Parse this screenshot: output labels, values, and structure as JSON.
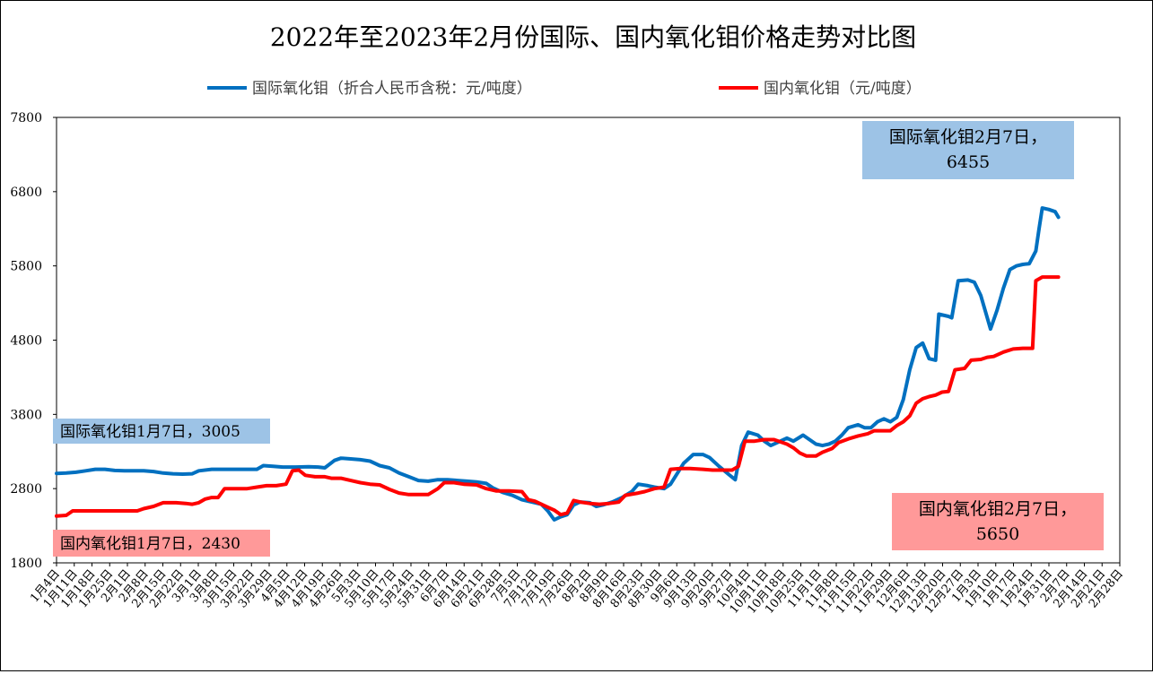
{
  "chart_data": {
    "type": "line",
    "title": "2022年至2023年2月份国际、国内氧化钼价格走势对比图",
    "legend_position": "top",
    "grid": false,
    "ylim": [
      1800,
      7800
    ],
    "yticks": [
      "1800",
      "2800",
      "3800",
      "4800",
      "5800",
      "6800",
      "7800"
    ],
    "series": [
      {
        "name": "国际氧化钼（折合人民币含税：元/吨度）",
        "color": "#0070C0",
        "points": [
          [
            0,
            3005
          ],
          [
            3,
            3010
          ],
          [
            6,
            3020
          ],
          [
            9,
            3040
          ],
          [
            12,
            3060
          ],
          [
            15,
            3060
          ],
          [
            18,
            3045
          ],
          [
            21,
            3040
          ],
          [
            24,
            3040
          ],
          [
            27,
            3040
          ],
          [
            30,
            3030
          ],
          [
            33,
            3010
          ],
          [
            36,
            3000
          ],
          [
            39,
            2995
          ],
          [
            42,
            3000
          ],
          [
            44,
            3040
          ],
          [
            48,
            3060
          ],
          [
            52,
            3060
          ],
          [
            57,
            3060
          ],
          [
            62,
            3060
          ],
          [
            64,
            3110
          ],
          [
            67,
            3100
          ],
          [
            70,
            3090
          ],
          [
            74,
            3090
          ],
          [
            78,
            3095
          ],
          [
            81,
            3090
          ],
          [
            83,
            3080
          ],
          [
            86,
            3180
          ],
          [
            88,
            3210
          ],
          [
            91,
            3200
          ],
          [
            94,
            3190
          ],
          [
            97,
            3170
          ],
          [
            100,
            3110
          ],
          [
            103,
            3080
          ],
          [
            106,
            3010
          ],
          [
            109,
            2960
          ],
          [
            112,
            2910
          ],
          [
            115,
            2900
          ],
          [
            118,
            2920
          ],
          [
            121,
            2920
          ],
          [
            124,
            2910
          ],
          [
            127,
            2900
          ],
          [
            130,
            2890
          ],
          [
            133,
            2870
          ],
          [
            135,
            2810
          ],
          [
            138,
            2750
          ],
          [
            141,
            2710
          ],
          [
            144,
            2650
          ],
          [
            147,
            2620
          ],
          [
            150,
            2590
          ],
          [
            152,
            2500
          ],
          [
            154,
            2380
          ],
          [
            156,
            2420
          ],
          [
            158,
            2450
          ],
          [
            160,
            2580
          ],
          [
            162,
            2620
          ],
          [
            165,
            2610
          ],
          [
            167,
            2560
          ],
          [
            169,
            2580
          ],
          [
            172,
            2620
          ],
          [
            175,
            2680
          ],
          [
            178,
            2760
          ],
          [
            180,
            2860
          ],
          [
            183,
            2840
          ],
          [
            185,
            2820
          ],
          [
            188,
            2800
          ],
          [
            190,
            2860
          ],
          [
            192,
            3000
          ],
          [
            194,
            3140
          ],
          [
            197,
            3260
          ],
          [
            200,
            3260
          ],
          [
            202,
            3220
          ],
          [
            205,
            3100
          ],
          [
            208,
            2990
          ],
          [
            210,
            2920
          ],
          [
            212,
            3380
          ],
          [
            214,
            3560
          ],
          [
            217,
            3520
          ],
          [
            219,
            3440
          ],
          [
            221,
            3380
          ],
          [
            223,
            3420
          ],
          [
            226,
            3480
          ],
          [
            228,
            3440
          ],
          [
            231,
            3520
          ],
          [
            233,
            3460
          ],
          [
            235,
            3400
          ],
          [
            237,
            3380
          ],
          [
            239,
            3400
          ],
          [
            241,
            3440
          ],
          [
            243,
            3520
          ],
          [
            245,
            3620
          ],
          [
            248,
            3660
          ],
          [
            250,
            3620
          ],
          [
            252,
            3620
          ],
          [
            254,
            3700
          ],
          [
            256,
            3740
          ],
          [
            258,
            3700
          ],
          [
            260,
            3760
          ],
          [
            262,
            4000
          ],
          [
            264,
            4400
          ],
          [
            266,
            4700
          ],
          [
            268,
            4760
          ],
          [
            270,
            4550
          ],
          [
            272,
            4530
          ],
          [
            273,
            5150
          ],
          [
            276,
            5120
          ],
          [
            277,
            5100
          ],
          [
            279,
            5600
          ],
          [
            282,
            5610
          ],
          [
            284,
            5580
          ],
          [
            286,
            5400
          ],
          [
            288,
            5100
          ],
          [
            289,
            4950
          ],
          [
            291,
            5200
          ],
          [
            293,
            5500
          ],
          [
            295,
            5750
          ],
          [
            297,
            5800
          ],
          [
            299,
            5820
          ],
          [
            301,
            5830
          ],
          [
            303,
            6000
          ],
          [
            304,
            6300
          ],
          [
            305,
            6580
          ],
          [
            307,
            6560
          ],
          [
            309,
            6530
          ],
          [
            310,
            6455
          ]
        ]
      },
      {
        "name": "国内氧化钼（元/吨度）",
        "color": "#FF0000",
        "points": [
          [
            0,
            2430
          ],
          [
            3,
            2440
          ],
          [
            5,
            2500
          ],
          [
            10,
            2500
          ],
          [
            15,
            2500
          ],
          [
            20,
            2500
          ],
          [
            25,
            2500
          ],
          [
            27,
            2530
          ],
          [
            30,
            2560
          ],
          [
            33,
            2610
          ],
          [
            37,
            2610
          ],
          [
            40,
            2600
          ],
          [
            42,
            2590
          ],
          [
            44,
            2610
          ],
          [
            46,
            2660
          ],
          [
            48,
            2680
          ],
          [
            50,
            2680
          ],
          [
            52,
            2800
          ],
          [
            56,
            2800
          ],
          [
            59,
            2800
          ],
          [
            62,
            2820
          ],
          [
            65,
            2840
          ],
          [
            68,
            2840
          ],
          [
            71,
            2860
          ],
          [
            73,
            3040
          ],
          [
            75,
            3050
          ],
          [
            77,
            2980
          ],
          [
            80,
            2960
          ],
          [
            83,
            2960
          ],
          [
            85,
            2940
          ],
          [
            88,
            2940
          ],
          [
            91,
            2910
          ],
          [
            94,
            2880
          ],
          [
            97,
            2860
          ],
          [
            100,
            2850
          ],
          [
            103,
            2790
          ],
          [
            106,
            2740
          ],
          [
            109,
            2720
          ],
          [
            112,
            2720
          ],
          [
            115,
            2720
          ],
          [
            118,
            2800
          ],
          [
            120,
            2880
          ],
          [
            123,
            2880
          ],
          [
            126,
            2860
          ],
          [
            130,
            2850
          ],
          [
            133,
            2800
          ],
          [
            136,
            2770
          ],
          [
            140,
            2770
          ],
          [
            144,
            2760
          ],
          [
            146,
            2650
          ],
          [
            148,
            2630
          ],
          [
            150,
            2590
          ],
          [
            152,
            2550
          ],
          [
            154,
            2510
          ],
          [
            156,
            2450
          ],
          [
            158,
            2470
          ],
          [
            160,
            2640
          ],
          [
            162,
            2620
          ],
          [
            165,
            2600
          ],
          [
            168,
            2590
          ],
          [
            171,
            2600
          ],
          [
            174,
            2620
          ],
          [
            176,
            2710
          ],
          [
            180,
            2740
          ],
          [
            182,
            2760
          ],
          [
            185,
            2800
          ],
          [
            188,
            2820
          ],
          [
            190,
            3060
          ],
          [
            193,
            3070
          ],
          [
            196,
            3070
          ],
          [
            200,
            3060
          ],
          [
            203,
            3050
          ],
          [
            206,
            3050
          ],
          [
            209,
            3050
          ],
          [
            211,
            3100
          ],
          [
            213,
            3440
          ],
          [
            216,
            3440
          ],
          [
            219,
            3460
          ],
          [
            222,
            3460
          ],
          [
            226,
            3400
          ],
          [
            228,
            3350
          ],
          [
            230,
            3280
          ],
          [
            232,
            3240
          ],
          [
            235,
            3240
          ],
          [
            237,
            3290
          ],
          [
            240,
            3340
          ],
          [
            242,
            3420
          ],
          [
            245,
            3470
          ],
          [
            248,
            3510
          ],
          [
            251,
            3540
          ],
          [
            253,
            3580
          ],
          [
            256,
            3580
          ],
          [
            258,
            3580
          ],
          [
            260,
            3650
          ],
          [
            262,
            3700
          ],
          [
            264,
            3780
          ],
          [
            266,
            3950
          ],
          [
            268,
            4010
          ],
          [
            270,
            4040
          ],
          [
            272,
            4060
          ],
          [
            274,
            4100
          ],
          [
            276,
            4110
          ],
          [
            278,
            4400
          ],
          [
            281,
            4420
          ],
          [
            283,
            4530
          ],
          [
            286,
            4540
          ],
          [
            288,
            4570
          ],
          [
            290,
            4580
          ],
          [
            293,
            4640
          ],
          [
            296,
            4680
          ],
          [
            299,
            4690
          ],
          [
            302,
            4690
          ],
          [
            303,
            5600
          ],
          [
            305,
            5650
          ],
          [
            307,
            5650
          ],
          [
            310,
            5650
          ]
        ]
      }
    ],
    "x_tick_labels": [
      "1月4日",
      "1月11日",
      "1月18日",
      "1月25日",
      "2月1日",
      "2月8日",
      "2月15日",
      "2月22日",
      "3月1日",
      "3月8日",
      "3月15日",
      "3月22日",
      "3月29日",
      "4月5日",
      "4月12日",
      "4月19日",
      "4月26日",
      "5月3日",
      "5月10日",
      "5月17日",
      "5月24日",
      "5月31日",
      "6月7日",
      "6月14日",
      "6月21日",
      "6月28日",
      "7月5日",
      "7月12日",
      "7月19日",
      "7月26日",
      "8月2日",
      "8月9日",
      "8月16日",
      "8月23日",
      "8月30日",
      "9月6日",
      "9月13日",
      "9月20日",
      "9月27日",
      "10月4日",
      "10月11日",
      "10月18日",
      "10月25日",
      "11月1日",
      "11月8日",
      "11月15日",
      "11月22日",
      "11月29日",
      "12月6日",
      "12月13日",
      "12月20日",
      "12月27日",
      "1月3日",
      "1月10日",
      "1月17日",
      "1月24日",
      "1月31日",
      "2月7日",
      "2月14日",
      "2月21日",
      "2月28日"
    ],
    "x_point_count": 330,
    "annotations": [
      {
        "id": "intl_start",
        "lines": [
          "国际氧化钼1月7日，3005"
        ],
        "bg": "#9DC3E6"
      },
      {
        "id": "intl_end",
        "lines": [
          "国际氧化钼2月7日，",
          "6455"
        ],
        "bg": "#9DC3E6"
      },
      {
        "id": "dom_start",
        "lines": [
          "国内氧化钼1月7日，2430"
        ],
        "bg": "#FF9999"
      },
      {
        "id": "dom_end",
        "lines": [
          "国内氧化钼2月7日，",
          "5650"
        ],
        "bg": "#FF9999"
      }
    ]
  }
}
